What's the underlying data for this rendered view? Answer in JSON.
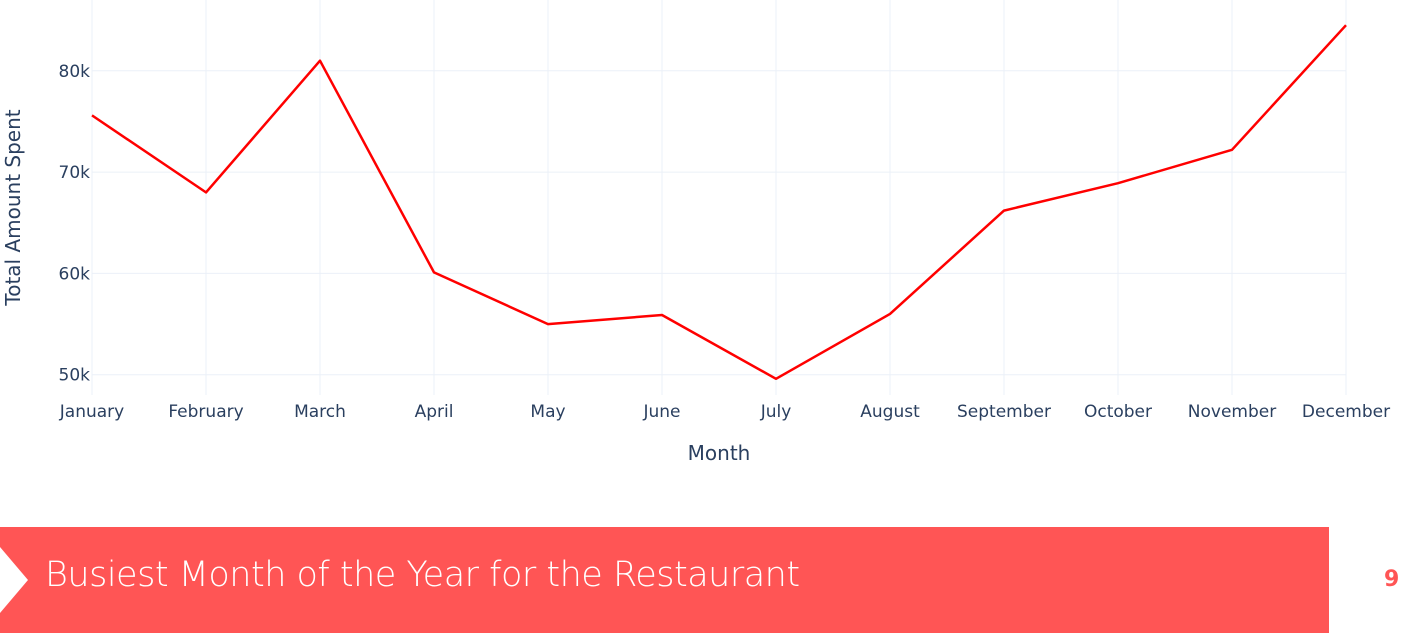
{
  "chart_data": {
    "type": "line",
    "categories": [
      "January",
      "February",
      "March",
      "April",
      "May",
      "June",
      "July",
      "August",
      "September",
      "October",
      "November",
      "December"
    ],
    "series": [
      {
        "values": [
          75600,
          68000,
          81000,
          60100,
          55000,
          55900,
          49600,
          56000,
          66200,
          68900,
          72200,
          84500
        ],
        "color": "#ff0000"
      }
    ],
    "title": "",
    "xlabel": "Month",
    "ylabel": "Total Amount Spent",
    "ylim": [
      48000,
      86000
    ],
    "yticks": [
      {
        "value": 50000,
        "label": "50k"
      },
      {
        "value": 60000,
        "label": "60k"
      },
      {
        "value": 70000,
        "label": "70k"
      },
      {
        "value": 80000,
        "label": "80k"
      }
    ],
    "grid": true
  },
  "slide": {
    "title": "Busiest Month of the Year for the Restaurant",
    "page_number": "9",
    "accent_color": "#ff5555"
  }
}
